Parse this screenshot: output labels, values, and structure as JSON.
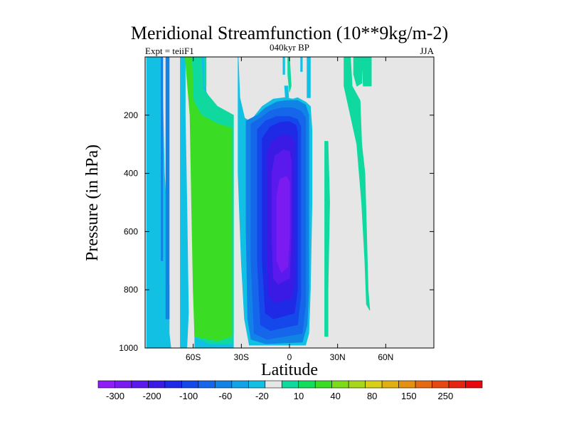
{
  "chart_data": {
    "type": "contour",
    "title": "Meridional Streamfunction (10**9kg/m-2)",
    "left_label": "Expt = teiiF1",
    "center_label": "040kyr BP",
    "right_label": "JJA",
    "xlabel": "Latitude",
    "ylabel": "Pressure (in hPa)",
    "xlim": [
      -90,
      90
    ],
    "ylim": [
      1000,
      0
    ],
    "x_ticks": [
      {
        "value": -60,
        "label": "60S"
      },
      {
        "value": -30,
        "label": "30S"
      },
      {
        "value": 0,
        "label": "0"
      },
      {
        "value": 30,
        "label": "30N"
      },
      {
        "value": 60,
        "label": "60N"
      }
    ],
    "y_ticks": [
      {
        "value": 200,
        "label": "200"
      },
      {
        "value": 400,
        "label": "400"
      },
      {
        "value": 600,
        "label": "600"
      },
      {
        "value": 800,
        "label": "800"
      },
      {
        "value": 1000,
        "label": "1000"
      }
    ],
    "background_color": "#e6e6e6",
    "colorbar": {
      "colors": [
        "#8f1df7",
        "#7a1bf1",
        "#5a1aee",
        "#3a1ae4",
        "#1f2ae6",
        "#1548ea",
        "#1566ea",
        "#1283e6",
        "#11a3e8",
        "#12c0e4",
        "#e6e6e6",
        "#10d9a0",
        "#12de5c",
        "#3bdd24",
        "#7ddc1a",
        "#a8d71a",
        "#d8cf16",
        "#e0b012",
        "#e49012",
        "#e66a12",
        "#e64812",
        "#e62412",
        "#e6080c"
      ],
      "labels": [
        "-300",
        "-200",
        "-100",
        "-60",
        "-20",
        "10",
        "40",
        "80",
        "150",
        "250"
      ]
    },
    "contours": [
      {
        "level": "-20",
        "color": "#12c0e4",
        "polygons": [
          [
            [
              -89,
              0
            ],
            [
              -80,
              0
            ],
            [
              -79,
              150
            ],
            [
              -78,
              400
            ],
            [
              -76,
              600
            ],
            [
              -75,
              800
            ],
            [
              -75,
              950
            ],
            [
              -74,
              1000
            ],
            [
              -89,
              1000
            ]
          ],
          [
            [
              -68,
              0
            ],
            [
              -65,
              0
            ],
            [
              -65,
              200
            ],
            [
              -64,
              500
            ],
            [
              -63,
              880
            ],
            [
              -64,
              1000
            ],
            [
              -68,
              1000
            ]
          ],
          [
            [
              -57,
              0
            ],
            [
              -53,
              0
            ],
            [
              -52,
              120
            ],
            [
              -45,
              190
            ],
            [
              -38,
              200
            ],
            [
              -35,
              200
            ],
            [
              -35,
              1000
            ],
            [
              -59,
              1000
            ],
            [
              -59,
              600
            ]
          ],
          [
            [
              -32,
              0
            ],
            [
              -31,
              140
            ],
            [
              -28,
              210
            ],
            [
              -25,
              220
            ],
            [
              -22,
              205
            ],
            [
              -17,
              170
            ],
            [
              -10,
              145
            ],
            [
              -3,
              140
            ],
            [
              2,
              145
            ],
            [
              5,
              140
            ],
            [
              10,
              155
            ],
            [
              13,
              170
            ],
            [
              14,
              250
            ],
            [
              14,
              500
            ],
            [
              13,
              800
            ],
            [
              12,
              950
            ],
            [
              10,
              990
            ],
            [
              -25,
              990
            ],
            [
              -28,
              900
            ],
            [
              -30,
              700
            ],
            [
              -32,
              400
            ]
          ],
          [
            [
              -4,
              0
            ],
            [
              -3,
              0
            ],
            [
              -3,
              60
            ],
            [
              -4,
              60
            ]
          ],
          [
            [
              -3,
              100
            ],
            [
              -1,
              100
            ],
            [
              0,
              180
            ],
            [
              -2,
              180
            ]
          ],
          [
            [
              11,
              0
            ],
            [
              13,
              0
            ],
            [
              13,
              140
            ],
            [
              11,
              140
            ]
          ],
          [
            [
              7,
              0
            ],
            [
              8,
              0
            ],
            [
              8,
              50
            ],
            [
              7,
              50
            ]
          ],
          [
            [
              -89,
              0
            ],
            [
              -86,
              0
            ],
            [
              -86,
              800
            ],
            [
              -88,
              1000
            ],
            [
              -89,
              1000
            ]
          ]
        ]
      },
      {
        "level": "10",
        "color": "#10d9a0",
        "polygons": [
          [
            [
              -65,
              0
            ],
            [
              -55,
              0
            ],
            [
              -54,
              110
            ],
            [
              -45,
              170
            ],
            [
              -35,
              200
            ],
            [
              -35,
              250
            ],
            [
              -40,
              240
            ],
            [
              -45,
              235
            ],
            [
              -55,
              200
            ],
            [
              -60,
              120
            ],
            [
              -62,
              0
            ]
          ],
          [
            [
              -53,
              0
            ],
            [
              -52,
              0
            ],
            [
              -52,
              100
            ],
            [
              -53,
              100
            ]
          ],
          [
            [
              -62,
              0
            ],
            [
              -61,
              200
            ],
            [
              -60,
              600
            ],
            [
              -59,
              960
            ],
            [
              -50,
              985
            ],
            [
              -36,
              985
            ],
            [
              -35,
              950
            ],
            [
              -35,
              250
            ],
            [
              -40,
              240
            ],
            [
              -45,
              235
            ],
            [
              -55,
              200
            ],
            [
              -60,
              120
            ]
          ],
          [
            [
              -1,
              0
            ],
            [
              0,
              0
            ],
            [
              1,
              100
            ],
            [
              0,
              120
            ],
            [
              -1,
              60
            ]
          ],
          [
            [
              22,
              290
            ],
            [
              24,
              290
            ],
            [
              25,
              500
            ],
            [
              24,
              800
            ],
            [
              24,
              960
            ],
            [
              22,
              960
            ],
            [
              22,
              600
            ]
          ],
          [
            [
              34,
              0
            ],
            [
              38,
              0
            ],
            [
              39,
              100
            ],
            [
              44,
              150
            ],
            [
              45,
              300
            ],
            [
              47,
              400
            ],
            [
              48,
              600
            ],
            [
              49,
              800
            ],
            [
              50,
              870
            ],
            [
              48,
              850
            ],
            [
              47,
              700
            ],
            [
              45,
              500
            ],
            [
              42,
              300
            ],
            [
              38,
              200
            ],
            [
              34,
              100
            ]
          ],
          [
            [
              40,
              0
            ],
            [
              45,
              0
            ],
            [
              45,
              90
            ],
            [
              42,
              100
            ],
            [
              40,
              60
            ]
          ],
          [
            [
              45,
              0
            ],
            [
              51,
              0
            ],
            [
              51,
              100
            ],
            [
              46,
              100
            ]
          ]
        ]
      },
      {
        "level": "40",
        "color": "#3bdd24",
        "polygons": [
          [
            [
              -65,
              0
            ],
            [
              -61,
              0
            ],
            [
              -60,
              150
            ],
            [
              -55,
              200
            ],
            [
              -45,
              230
            ],
            [
              -38,
              240
            ],
            [
              -36,
              245
            ],
            [
              -36,
              960
            ],
            [
              -45,
              975
            ],
            [
              -59,
              960
            ],
            [
              -60,
              800
            ],
            [
              -61,
              500
            ],
            [
              -62,
              200
            ]
          ]
        ]
      },
      {
        "level": "-60",
        "color": "#1283e6",
        "polygons": [
          [
            [
              -80,
              0
            ],
            [
              -79,
              0
            ],
            [
              -79,
              700
            ],
            [
              -80,
              700
            ]
          ],
          [
            [
              -27,
              220
            ],
            [
              -20,
              200
            ],
            [
              -15,
              175
            ],
            [
              -8,
              155
            ],
            [
              -2,
              150
            ],
            [
              5,
              150
            ],
            [
              10,
              165
            ],
            [
              12,
              200
            ],
            [
              12,
              500
            ],
            [
              12,
              800
            ],
            [
              11,
              920
            ],
            [
              8,
              980
            ],
            [
              -15,
              985
            ],
            [
              -24,
              970
            ],
            [
              -26,
              900
            ],
            [
              -27,
              600
            ]
          ],
          [
            [
              -77,
              0
            ],
            [
              -75,
              0
            ],
            [
              -75,
              900
            ],
            [
              -77,
              900
            ]
          ]
        ]
      },
      {
        "level": "-100",
        "color": "#1566ea",
        "polygons": [
          [
            [
              -24,
              230
            ],
            [
              -18,
              210
            ],
            [
              -12,
              185
            ],
            [
              -5,
              175
            ],
            [
              2,
              175
            ],
            [
              7,
              185
            ],
            [
              10,
              210
            ],
            [
              10,
              500
            ],
            [
              10,
              850
            ],
            [
              8,
              950
            ],
            [
              -14,
              970
            ],
            [
              -22,
              950
            ],
            [
              -24,
              700
            ]
          ]
        ]
      },
      {
        "level": "-120",
        "color": "#1548ea",
        "polygons": [
          [
            [
              -20,
              250
            ],
            [
              -15,
              220
            ],
            [
              -8,
              205
            ],
            [
              0,
              205
            ],
            [
              5,
              215
            ],
            [
              7,
              240
            ],
            [
              7,
              500
            ],
            [
              7,
              820
            ],
            [
              5,
              920
            ],
            [
              -12,
              940
            ],
            [
              -18,
              920
            ],
            [
              -20,
              700
            ]
          ]
        ]
      },
      {
        "level": "-160",
        "color": "#1f2ae6",
        "polygons": [
          [
            [
              -17,
              280
            ],
            [
              -12,
              240
            ],
            [
              -6,
              225
            ],
            [
              0,
              222
            ],
            [
              4,
              235
            ],
            [
              5,
              260
            ],
            [
              5,
              500
            ],
            [
              5,
              800
            ],
            [
              3,
              880
            ],
            [
              -10,
              900
            ],
            [
              -15,
              880
            ],
            [
              -17,
              700
            ]
          ]
        ]
      },
      {
        "level": "-200",
        "color": "#3a1ae4",
        "polygons": [
          [
            [
              -14,
              330
            ],
            [
              -11,
              290
            ],
            [
              -5,
              270
            ],
            [
              0,
              270
            ],
            [
              3,
              290
            ],
            [
              3,
              500
            ],
            [
              3,
              780
            ],
            [
              1,
              830
            ],
            [
              -9,
              845
            ],
            [
              -13,
              820
            ],
            [
              -14,
              650
            ]
          ]
        ]
      },
      {
        "level": "-250",
        "color": "#5a1aee",
        "polygons": [
          [
            [
              -11,
              400
            ],
            [
              -9,
              340
            ],
            [
              -4,
              320
            ],
            [
              0,
              325
            ],
            [
              1,
              360
            ],
            [
              1,
              600
            ],
            [
              0,
              760
            ],
            [
              -7,
              780
            ],
            [
              -10,
              760
            ],
            [
              -11,
              600
            ]
          ]
        ]
      },
      {
        "level": "-300",
        "color": "#7a1bf1",
        "polygons": [
          [
            [
              -8,
              480
            ],
            [
              -6,
              420
            ],
            [
              -2,
              410
            ],
            [
              0,
              430
            ],
            [
              0,
              620
            ],
            [
              -1,
              720
            ],
            [
              -5,
              740
            ],
            [
              -8,
              700
            ]
          ]
        ]
      }
    ]
  }
}
